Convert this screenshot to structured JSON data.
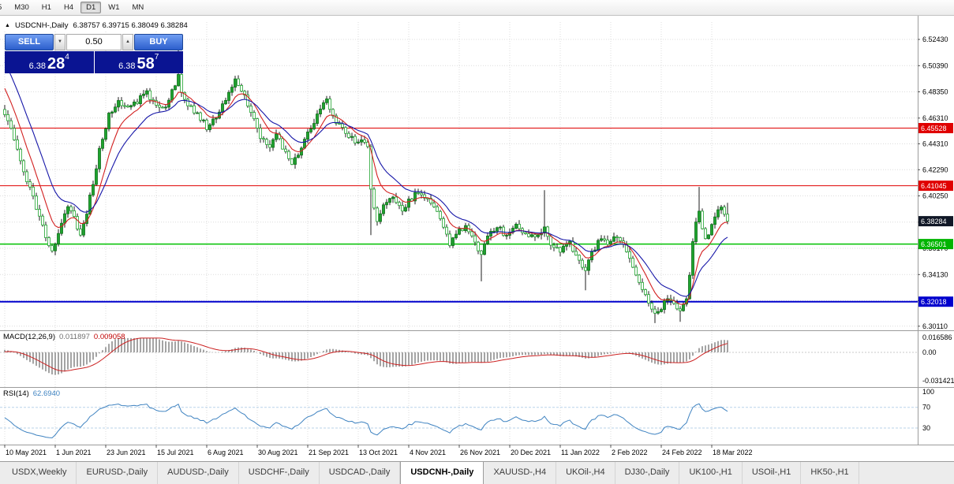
{
  "toolbar": {
    "timeframes": [
      "5",
      "M30",
      "H1",
      "H4",
      "D1",
      "W1",
      "MN"
    ],
    "active": "D1"
  },
  "symbol_bar": {
    "collapse_icon": "▲",
    "title": "USDCNH-,Daily",
    "ohlc_text": "6.38757 6.39715 6.38049 6.38284"
  },
  "trade": {
    "sell_label": "SELL",
    "buy_label": "BUY",
    "volume": "0.50",
    "step_down_icon": "▼",
    "step_up_icon": "▲",
    "sell_price": {
      "main": "6.38",
      "pips": "28",
      "point": "4"
    },
    "buy_price": {
      "main": "6.38",
      "pips": "58",
      "point": "7"
    }
  },
  "macd_panel": {
    "name": "MACD(12,26,9)",
    "value": "0.011897",
    "signal": "0.009058",
    "axis": [
      {
        "label": "0.016586",
        "value": 0.016586
      },
      {
        "label": "0.00",
        "value": 0
      },
      {
        "label": "-0.031421",
        "value": -0.031421
      }
    ]
  },
  "rsi_panel": {
    "name": "RSI(14)",
    "value": "62.6940",
    "axis": [
      {
        "label": "100",
        "value": 100
      },
      {
        "label": "70",
        "value": 70
      },
      {
        "label": "30",
        "value": 30
      }
    ]
  },
  "price_scale": {
    "ticks": [
      {
        "label": "6.52430",
        "price": 6.5243
      },
      {
        "label": "6.50390",
        "price": 6.5039
      },
      {
        "label": "6.48350",
        "price": 6.4835
      },
      {
        "label": "6.46310",
        "price": 6.4631
      },
      {
        "label": "6.44310",
        "price": 6.4431
      },
      {
        "label": "6.42290",
        "price": 6.4229
      },
      {
        "label": "6.40250",
        "price": 6.4025
      },
      {
        "label": "6.38210",
        "price": 6.3821
      },
      {
        "label": "6.36170",
        "price": 6.3617
      },
      {
        "label": "6.34130",
        "price": 6.3413
      },
      {
        "label": "6.32090",
        "price": 6.3209
      },
      {
        "label": "6.30110",
        "price": 6.3011
      }
    ],
    "chips": [
      {
        "label": "6.45528",
        "price": 6.45528,
        "bg": "#e00000"
      },
      {
        "label": "6.41045",
        "price": 6.41045,
        "bg": "#e00000"
      },
      {
        "label": "6.38284",
        "price": 6.38284,
        "bg": "#101726"
      },
      {
        "label": "6.36501",
        "price": 6.36501,
        "bg": "#00b400"
      },
      {
        "label": "6.32018",
        "price": 6.32018,
        "bg": "#0000cd"
      }
    ]
  },
  "date_axis": [
    {
      "label": "10 May 2021",
      "i": 0
    },
    {
      "label": "1 Jun 2021",
      "i": 16
    },
    {
      "label": "23 Jun 2021",
      "i": 32
    },
    {
      "label": "15 Jul 2021",
      "i": 48
    },
    {
      "label": "6 Aug 2021",
      "i": 64
    },
    {
      "label": "30 Aug 2021",
      "i": 80
    },
    {
      "label": "21 Sep 2021",
      "i": 96
    },
    {
      "label": "13 Oct 2021",
      "i": 112
    },
    {
      "label": "4 Nov 2021",
      "i": 128
    },
    {
      "label": "26 Nov 2021",
      "i": 144
    },
    {
      "label": "20 Dec 2021",
      "i": 160
    },
    {
      "label": "11 Jan 2022",
      "i": 176
    },
    {
      "label": "2 Feb 2022",
      "i": 192
    },
    {
      "label": "24 Feb 2022",
      "i": 208
    },
    {
      "label": "18 Mar 2022",
      "i": 224
    }
  ],
  "tabs": {
    "active": "USDCNH-,Daily",
    "list": [
      "USDX,Weekly",
      "EURUSD-,Daily",
      "AUDUSD-,Daily",
      "USDCHF-,Daily",
      "USDCAD-,Daily",
      "USDCNH-,Daily",
      "XAUUSD-,H4",
      "UKOil-,H4",
      "DJ30-,Daily",
      "UK100-,H1",
      "USOil-,H1",
      "HK50-,H1"
    ]
  },
  "chart_data": {
    "type": "candlestick",
    "symbol": "USDCNH-",
    "timeframe": "Daily",
    "current_ohlc": {
      "open": 6.38757,
      "high": 6.39715,
      "low": 6.38049,
      "close": 6.38284
    },
    "candle_count": 230,
    "last_close": 6.38284,
    "visible_price_range": [
      6.2986,
      6.5378
    ],
    "anchors": [
      [
        0,
        6.468
      ],
      [
        3,
        6.448
      ],
      [
        6,
        6.422
      ],
      [
        9,
        6.402
      ],
      [
        12,
        6.378
      ],
      [
        15,
        6.358
      ],
      [
        18,
        6.383
      ],
      [
        20,
        6.396
      ],
      [
        22,
        6.386
      ],
      [
        24,
        6.372
      ],
      [
        26,
        6.39
      ],
      [
        28,
        6.412
      ],
      [
        30,
        6.438
      ],
      [
        33,
        6.466
      ],
      [
        36,
        6.477
      ],
      [
        39,
        6.47
      ],
      [
        42,
        6.476
      ],
      [
        45,
        6.483
      ],
      [
        48,
        6.473
      ],
      [
        51,
        6.47
      ],
      [
        54,
        6.49
      ],
      [
        55,
        6.497
      ],
      [
        56,
        6.483
      ],
      [
        58,
        6.473
      ],
      [
        61,
        6.467
      ],
      [
        64,
        6.456
      ],
      [
        67,
        6.463
      ],
      [
        70,
        6.477
      ],
      [
        73,
        6.492
      ],
      [
        75,
        6.486
      ],
      [
        78,
        6.468
      ],
      [
        81,
        6.449
      ],
      [
        84,
        6.441
      ],
      [
        86,
        6.452
      ],
      [
        88,
        6.441
      ],
      [
        91,
        6.426
      ],
      [
        94,
        6.439
      ],
      [
        97,
        6.456
      ],
      [
        100,
        6.469
      ],
      [
        102,
        6.477
      ],
      [
        105,
        6.461
      ],
      [
        108,
        6.452
      ],
      [
        111,
        6.445
      ],
      [
        114,
        6.446
      ],
      [
        115,
        6.441
      ],
      [
        116,
        6.408
      ],
      [
        118,
        6.381
      ],
      [
        120,
        6.396
      ],
      [
        123,
        6.403
      ],
      [
        126,
        6.391
      ],
      [
        128,
        6.398
      ],
      [
        131,
        6.406
      ],
      [
        134,
        6.4
      ],
      [
        137,
        6.391
      ],
      [
        139,
        6.379
      ],
      [
        141,
        6.363
      ],
      [
        143,
        6.373
      ],
      [
        146,
        6.379
      ],
      [
        148,
        6.371
      ],
      [
        151,
        6.357
      ],
      [
        153,
        6.373
      ],
      [
        156,
        6.379
      ],
      [
        159,
        6.371
      ],
      [
        162,
        6.379
      ],
      [
        165,
        6.373
      ],
      [
        168,
        6.369
      ],
      [
        171,
        6.379
      ],
      [
        173,
        6.366
      ],
      [
        176,
        6.359
      ],
      [
        179,
        6.366
      ],
      [
        182,
        6.351
      ],
      [
        184,
        6.343
      ],
      [
        186,
        6.359
      ],
      [
        189,
        6.369
      ],
      [
        192,
        6.366
      ],
      [
        194,
        6.371
      ],
      [
        196,
        6.363
      ],
      [
        198,
        6.353
      ],
      [
        200,
        6.341
      ],
      [
        202,
        6.331
      ],
      [
        204,
        6.319
      ],
      [
        206,
        6.311
      ],
      [
        208,
        6.316
      ],
      [
        210,
        6.323
      ],
      [
        212,
        6.317
      ],
      [
        214,
        6.313
      ],
      [
        216,
        6.323
      ],
      [
        217,
        6.342
      ],
      [
        218,
        6.365
      ],
      [
        219,
        6.384
      ],
      [
        220,
        6.392
      ],
      [
        221,
        6.379
      ],
      [
        222,
        6.369
      ],
      [
        223,
        6.373
      ],
      [
        224,
        6.379
      ],
      [
        226,
        6.392
      ],
      [
        227,
        6.396
      ],
      [
        228,
        6.388
      ],
      [
        229,
        6.38284
      ]
    ],
    "specials": {
      "55": {
        "h": 6.5235
      },
      "116": {
        "l": 6.372
      },
      "151": {
        "l": 6.336
      },
      "171": {
        "h": 6.407
      },
      "184": {
        "l": 6.329
      },
      "206": {
        "l": 6.3035
      },
      "214": {
        "l": 6.3045
      },
      "220": {
        "h": 6.4095
      },
      "229": {
        "h": 6.39715,
        "l": 6.38049
      }
    },
    "horizontal_levels": [
      {
        "price": 6.45528,
        "color": "#e00000",
        "width": 1
      },
      {
        "price": 6.41045,
        "color": "#e00000",
        "width": 1
      },
      {
        "price": 6.36501,
        "color": "#00c000",
        "width": 1.5
      },
      {
        "price": 6.32018,
        "color": "#0000cd",
        "width": 2
      }
    ],
    "overlays": [
      {
        "name": "ma-fast",
        "color": "#d22020"
      },
      {
        "name": "ma-slow",
        "color": "#1616a8"
      }
    ],
    "indicators": {
      "macd": {
        "params": "12,26,9",
        "value": 0.011897,
        "signal": 0.009058,
        "axis": [
          0.016586,
          0,
          -0.031421
        ]
      },
      "rsi": {
        "params": "14",
        "value": 62.694,
        "levels": [
          70,
          30
        ],
        "axis": [
          100,
          70,
          30
        ]
      }
    }
  }
}
